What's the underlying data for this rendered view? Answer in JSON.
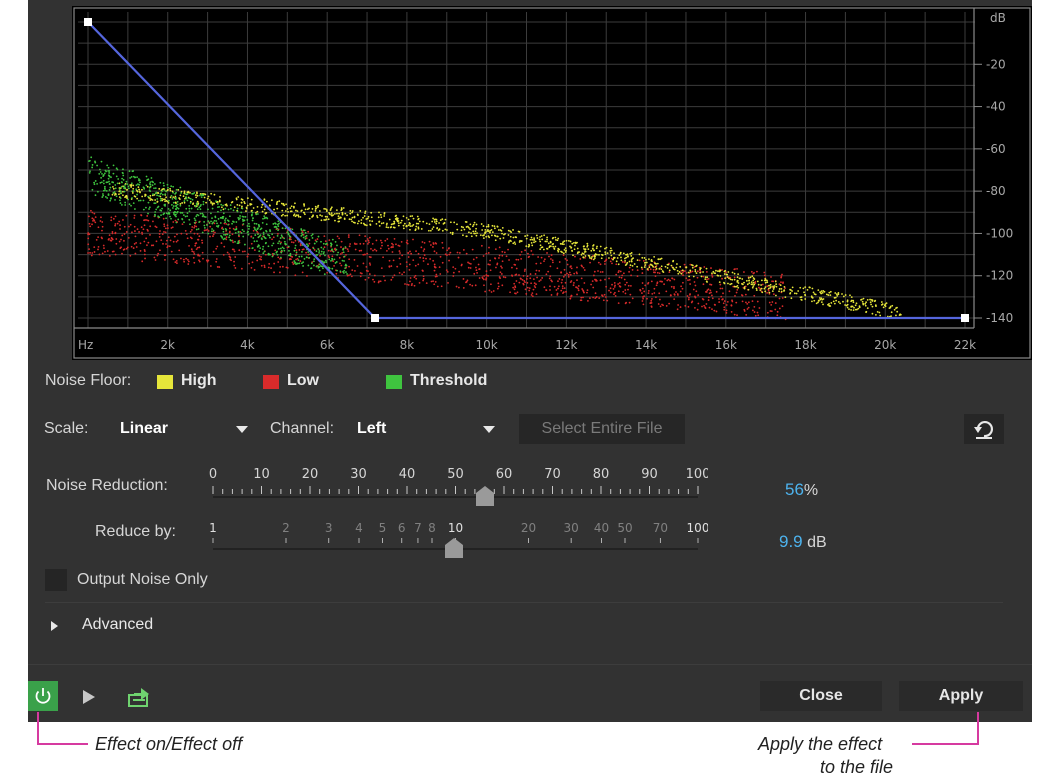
{
  "graph": {
    "db_unit": "dB",
    "db_ticks": [
      "-20",
      "-40",
      "-60",
      "-80",
      "-100",
      "-120",
      "-140"
    ],
    "freq_ticks": [
      "Hz",
      "2k",
      "4k",
      "6k",
      "8k",
      "10k",
      "12k",
      "14k",
      "16k",
      "18k",
      "20k",
      "22k"
    ],
    "curve_points_khz_db": [
      [
        0,
        0
      ],
      [
        7.2,
        -140
      ],
      [
        22,
        -140
      ]
    ],
    "colors": {
      "high": "#e6e63a",
      "low": "#d92b2b",
      "threshold": "#3fc43f",
      "curve": "#5566dd"
    }
  },
  "legend": {
    "label": "Noise Floor:",
    "items": [
      {
        "label": "High",
        "color": "#e6e63a"
      },
      {
        "label": "Low",
        "color": "#d92b2b"
      },
      {
        "label": "Threshold",
        "color": "#3fc43f"
      }
    ]
  },
  "controls": {
    "scale_label": "Scale:",
    "scale_value": "Linear",
    "channel_label": "Channel:",
    "channel_value": "Left",
    "select_entire_file": "Select Entire File",
    "reset_icon": "reset-icon"
  },
  "noise_reduction": {
    "label": "Noise Reduction:",
    "ticks": [
      "0",
      "10",
      "20",
      "30",
      "40",
      "50",
      "60",
      "70",
      "80",
      "90",
      "100"
    ],
    "value": "56",
    "unit": "%"
  },
  "reduce_by": {
    "label": "Reduce by:",
    "ticks": [
      "1",
      "2",
      "3",
      "4",
      "5",
      "6",
      "7",
      "8",
      "10",
      "20",
      "30",
      "40",
      "50",
      "70",
      "100"
    ],
    "value": "9.9",
    "unit": "dB"
  },
  "output_noise_only": {
    "label": "Output Noise Only",
    "checked": false
  },
  "advanced": {
    "label": "Advanced"
  },
  "footer": {
    "close": "Close",
    "apply": "Apply",
    "power_icon": "power-icon",
    "play_icon": "play-icon",
    "export_icon": "export-icon"
  },
  "callouts": {
    "effect": "Effect on/Effect off",
    "apply_line1": "Apply the effect",
    "apply_line2": "to the file"
  }
}
